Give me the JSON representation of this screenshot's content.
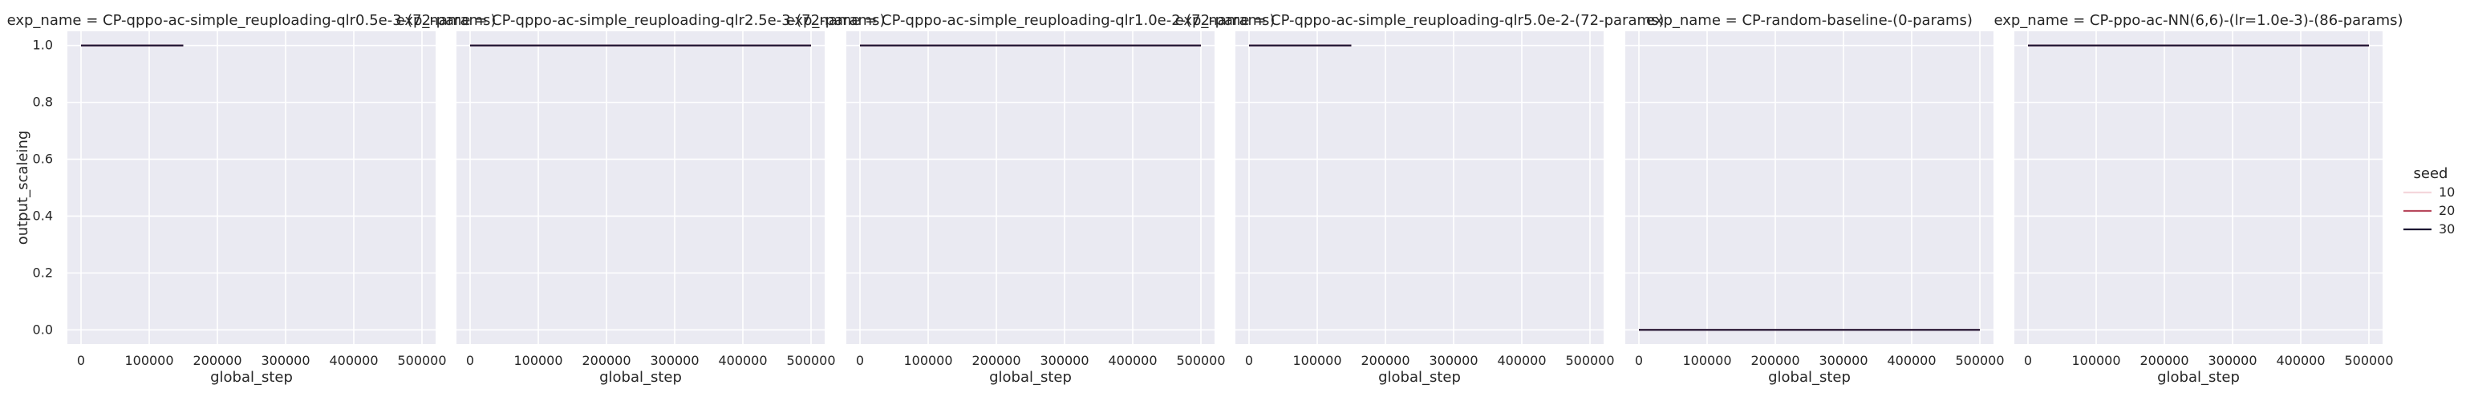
{
  "chart_data": {
    "type": "line",
    "ylabel": "output_scaleing",
    "xlabel": "global_step",
    "xlim": [
      -20000,
      520000
    ],
    "ylim": [
      -0.05,
      1.05
    ],
    "x_ticks": [
      0,
      100000,
      200000,
      300000,
      400000,
      500000
    ],
    "y_ticks": [
      0.0,
      0.2,
      0.4,
      0.6,
      0.8,
      1.0
    ],
    "x_tick_labels": [
      "0",
      "100000",
      "200000",
      "300000",
      "400000",
      "500000"
    ],
    "y_tick_labels": [
      "0.0",
      "0.2",
      "0.4",
      "0.6",
      "0.8",
      "1.0"
    ],
    "grid": true,
    "legend": {
      "title": "seed",
      "placement": "right",
      "entries": [
        {
          "label": "10",
          "color": "#f4d6dc"
        },
        {
          "label": "20",
          "color": "#b8495e"
        },
        {
          "label": "30",
          "color": "#1c1533"
        }
      ]
    },
    "panels": [
      {
        "title": "exp_name = CP-qppo-ac-simple_reuploading-qlr0.5e-3-(72-params)",
        "series": [
          {
            "name": "10",
            "x": [
              0,
              150000
            ],
            "y": [
              1.0,
              1.0
            ]
          },
          {
            "name": "20",
            "x": [
              0,
              150000
            ],
            "y": [
              1.0,
              1.0
            ]
          },
          {
            "name": "30",
            "x": [
              0,
              150000
            ],
            "y": [
              1.0,
              1.0
            ]
          }
        ]
      },
      {
        "title": "exp_name = CP-qppo-ac-simple_reuploading-qlr2.5e-3-(72-params)",
        "series": [
          {
            "name": "10",
            "x": [
              0,
              500000
            ],
            "y": [
              1.0,
              1.0
            ]
          },
          {
            "name": "20",
            "x": [
              0,
              500000
            ],
            "y": [
              1.0,
              1.0
            ]
          },
          {
            "name": "30",
            "x": [
              0,
              500000
            ],
            "y": [
              1.0,
              1.0
            ]
          }
        ]
      },
      {
        "title": "exp_name = CP-qppo-ac-simple_reuploading-qlr1.0e-2-(72-params)",
        "series": [
          {
            "name": "10",
            "x": [
              0,
              500000
            ],
            "y": [
              1.0,
              1.0
            ]
          },
          {
            "name": "20",
            "x": [
              0,
              500000
            ],
            "y": [
              1.0,
              1.0
            ]
          },
          {
            "name": "30",
            "x": [
              0,
              500000
            ],
            "y": [
              1.0,
              1.0
            ]
          }
        ]
      },
      {
        "title": "exp_name = CP-qppo-ac-simple_reuploading-qlr5.0e-2-(72-params)",
        "series": [
          {
            "name": "10",
            "x": [
              0,
              150000
            ],
            "y": [
              1.0,
              1.0
            ]
          },
          {
            "name": "20",
            "x": [
              0,
              150000
            ],
            "y": [
              1.0,
              1.0
            ]
          },
          {
            "name": "30",
            "x": [
              0,
              150000
            ],
            "y": [
              1.0,
              1.0
            ]
          }
        ]
      },
      {
        "title": "exp_name = CP-random-baseline-(0-params)",
        "series": [
          {
            "name": "10",
            "x": [
              0,
              500000
            ],
            "y": [
              0.0,
              0.0
            ]
          },
          {
            "name": "20",
            "x": [
              0,
              500000
            ],
            "y": [
              0.0,
              0.0
            ]
          },
          {
            "name": "30",
            "x": [
              0,
              500000
            ],
            "y": [
              0.0,
              0.0
            ]
          }
        ]
      },
      {
        "title": "exp_name = CP-ppo-ac-NN(6,6)-(lr=1.0e-3)-(86-params)",
        "series": [
          {
            "name": "10",
            "x": [
              0,
              500000
            ],
            "y": [
              1.0,
              1.0
            ]
          },
          {
            "name": "20",
            "x": [
              0,
              500000
            ],
            "y": [
              1.0,
              1.0
            ]
          },
          {
            "name": "30",
            "x": [
              0,
              500000
            ],
            "y": [
              1.0,
              1.0
            ]
          }
        ]
      }
    ]
  }
}
